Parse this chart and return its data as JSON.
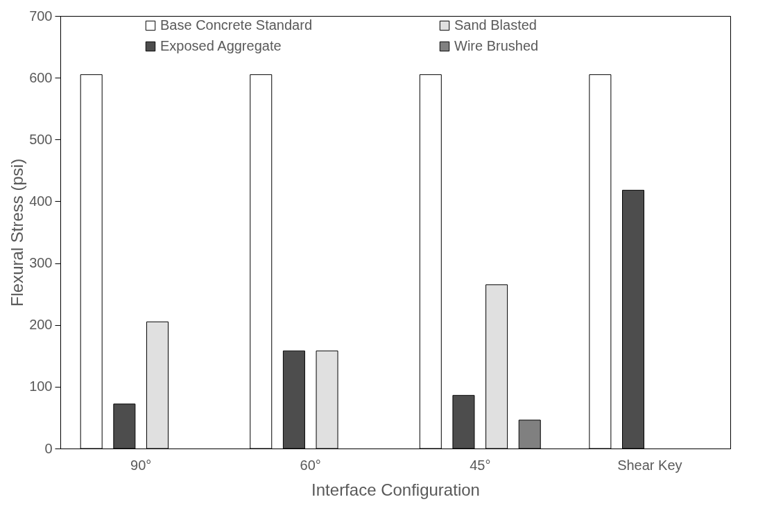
{
  "chart_data": {
    "type": "bar",
    "xlabel": "Interface Configuration",
    "ylabel": "Flexural Stress (psi)",
    "categories": [
      "90°",
      "60°",
      "45°",
      "Shear Key"
    ],
    "series": [
      {
        "name": "Base Concrete Standard",
        "color": "#ffffff",
        "values": [
          605,
          605,
          605,
          605
        ]
      },
      {
        "name": "Exposed Aggregate",
        "color": "#4d4d4d",
        "values": [
          72,
          158,
          86,
          418
        ]
      },
      {
        "name": "Sand Blasted",
        "color": "#e0e0e0",
        "values": [
          205,
          158,
          265,
          null
        ]
      },
      {
        "name": "Wire Brushed",
        "color": "#808080",
        "values": [
          null,
          null,
          46,
          null
        ]
      }
    ],
    "ylim": [
      0,
      700
    ],
    "yticks": [
      0,
      100,
      200,
      300,
      400,
      500,
      600,
      700
    ],
    "grid": false,
    "legend": "top"
  }
}
